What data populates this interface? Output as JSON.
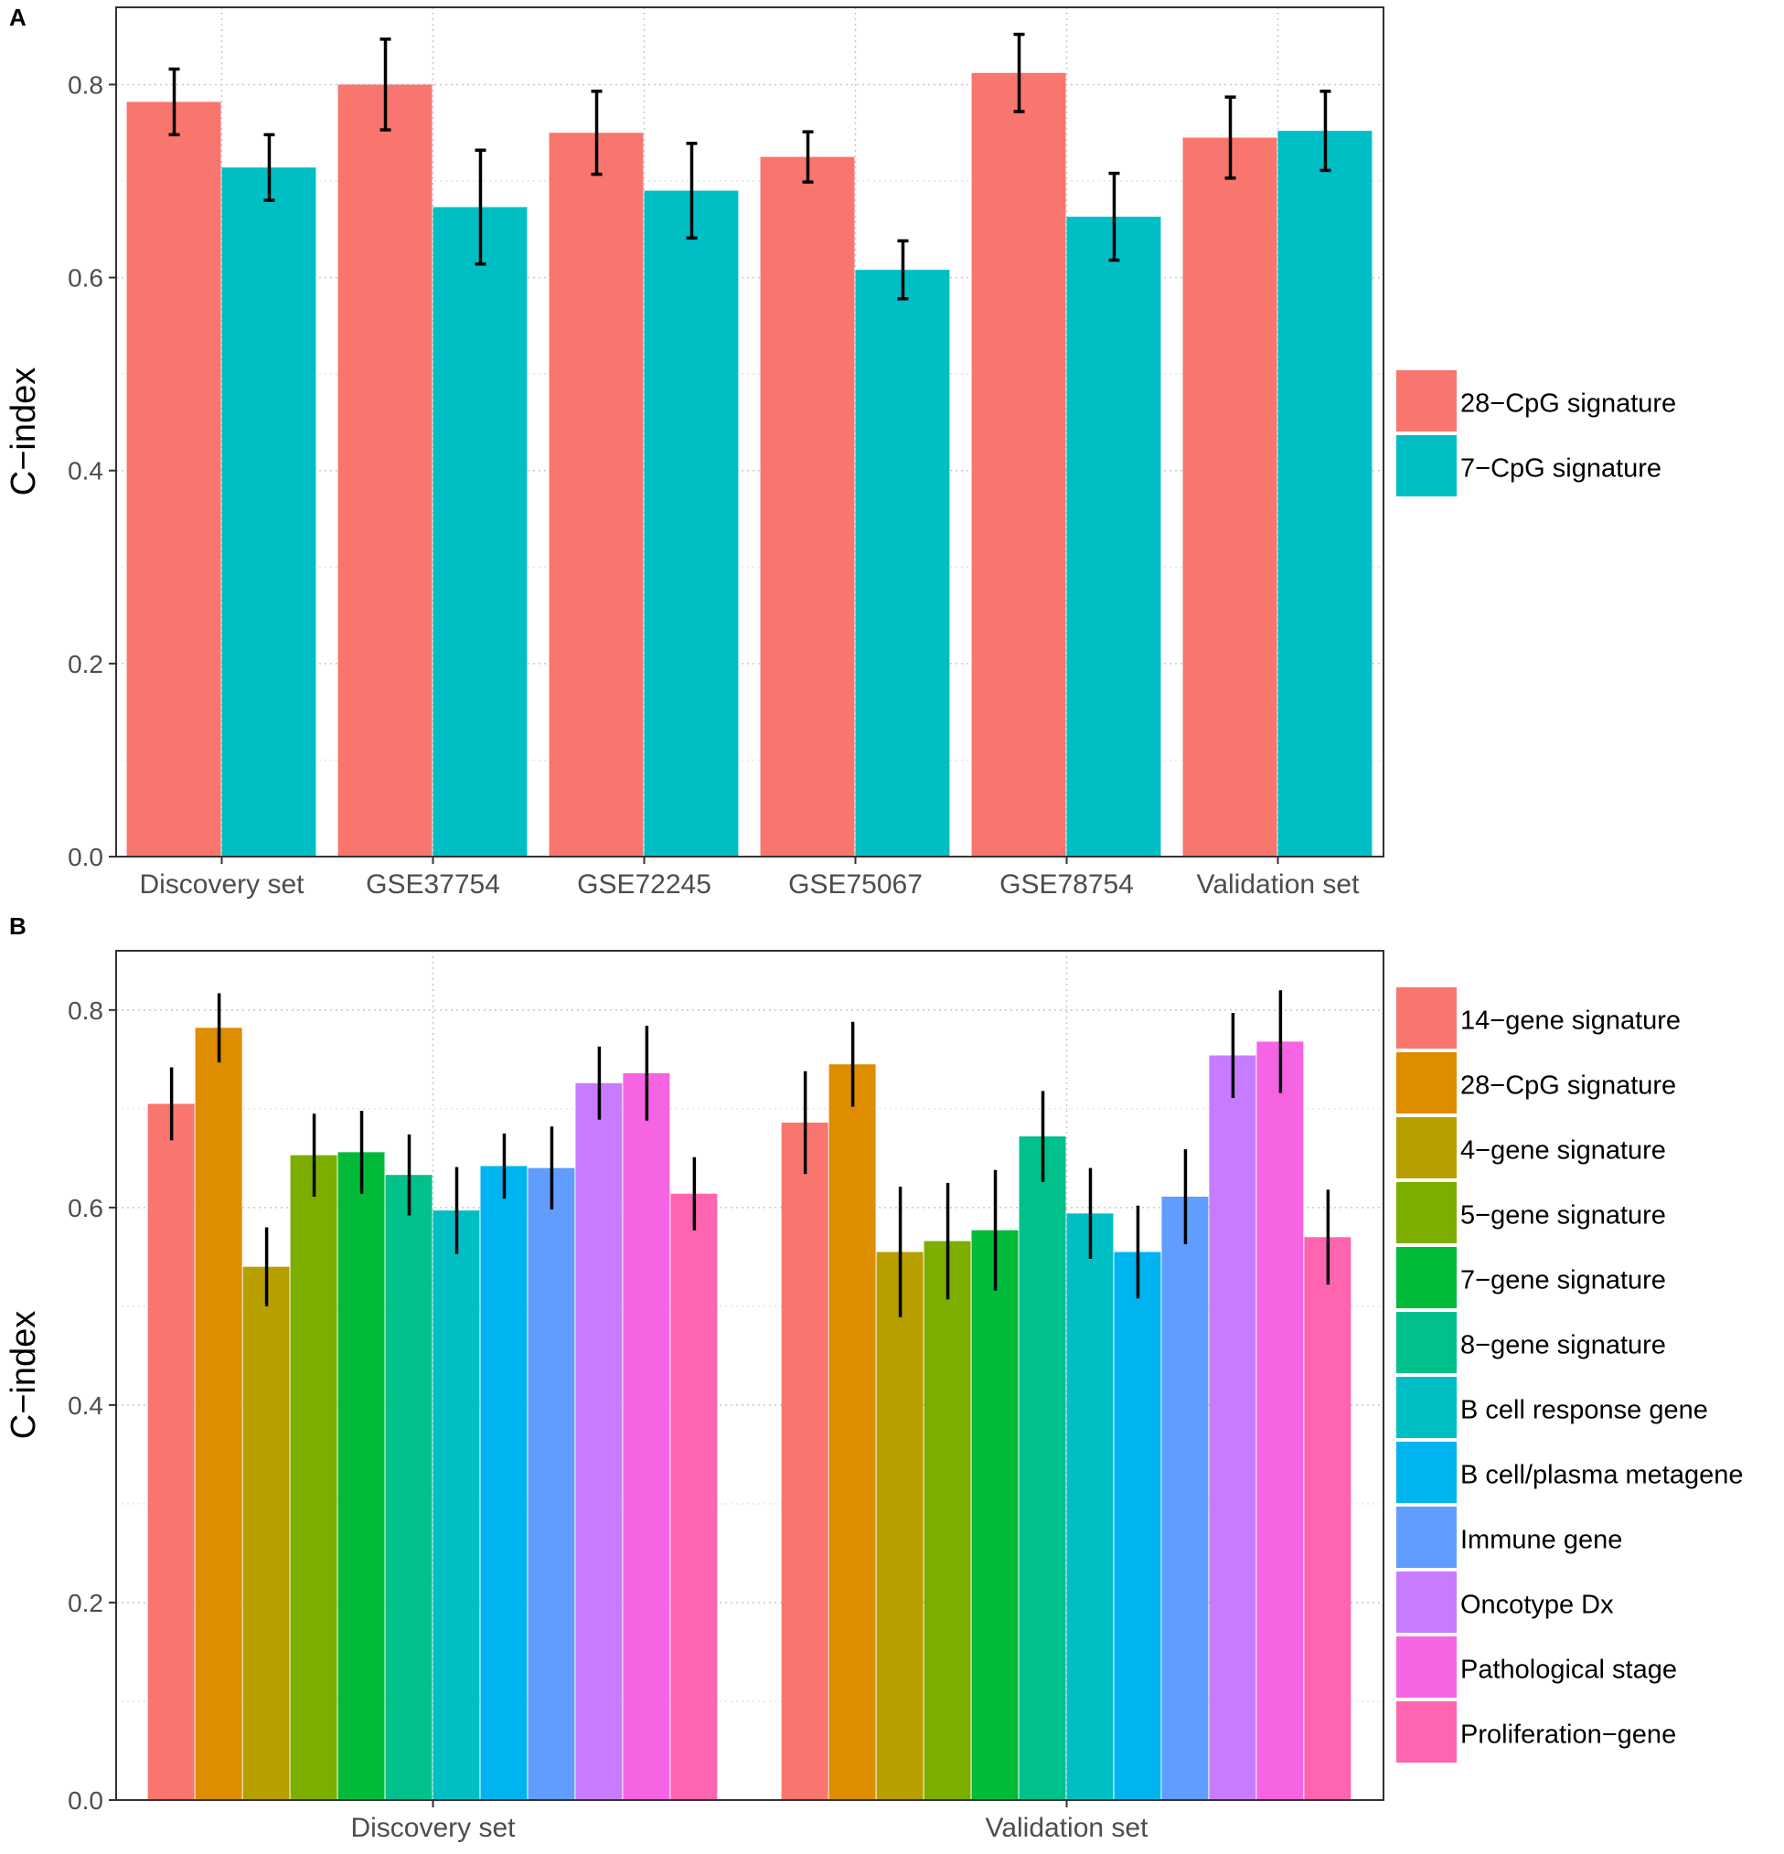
{
  "chart_data": [
    {
      "panel_label": "A",
      "type": "bar",
      "ylabel": "C−index",
      "xlabel": "",
      "ylim": [
        0,
        0.88
      ],
      "yticks": [
        "0.0",
        "0.2",
        "0.4",
        "0.6",
        "0.8"
      ],
      "grid": true,
      "legend_position": "right",
      "categories": [
        "Discovery set",
        "GSE37754",
        "GSE72245",
        "GSE75067",
        "GSE78754",
        "Validation set"
      ],
      "series": [
        {
          "name": "28−CpG signature",
          "color": "#F8766D",
          "values": [
            0.782,
            0.8,
            0.75,
            0.725,
            0.812,
            0.745
          ],
          "lower": [
            0.748,
            0.753,
            0.707,
            0.699,
            0.772,
            0.703
          ],
          "upper": [
            0.816,
            0.847,
            0.793,
            0.751,
            0.852,
            0.787
          ]
        },
        {
          "name": "7−CpG signature",
          "color": "#00BFC4",
          "values": [
            0.714,
            0.673,
            0.69,
            0.608,
            0.663,
            0.752
          ],
          "lower": [
            0.68,
            0.614,
            0.641,
            0.578,
            0.618,
            0.711
          ],
          "upper": [
            0.748,
            0.732,
            0.739,
            0.638,
            0.708,
            0.793
          ]
        }
      ]
    },
    {
      "panel_label": "B",
      "type": "bar",
      "ylabel": "C−index",
      "xlabel": "",
      "ylim": [
        0,
        0.86
      ],
      "yticks": [
        "0.0",
        "0.2",
        "0.4",
        "0.6",
        "0.8"
      ],
      "grid": true,
      "legend_position": "right",
      "categories": [
        "Discovery set",
        "Validation set"
      ],
      "series": [
        {
          "name": "14−gene signature",
          "color": "#F8766D",
          "values": [
            0.705,
            0.686
          ],
          "lower": [
            0.668,
            0.634
          ],
          "upper": [
            0.742,
            0.738
          ]
        },
        {
          "name": "28−CpG signature",
          "color": "#DE8C00",
          "values": [
            0.782,
            0.745
          ],
          "lower": [
            0.747,
            0.702
          ],
          "upper": [
            0.817,
            0.788
          ]
        },
        {
          "name": "4−gene signature",
          "color": "#B79F00",
          "values": [
            0.54,
            0.555
          ],
          "lower": [
            0.5,
            0.489
          ],
          "upper": [
            0.58,
            0.621
          ]
        },
        {
          "name": "5−gene signature",
          "color": "#7CAE00",
          "values": [
            0.653,
            0.566
          ],
          "lower": [
            0.611,
            0.507
          ],
          "upper": [
            0.695,
            0.625
          ]
        },
        {
          "name": "7−gene signature",
          "color": "#00BA38",
          "values": [
            0.656,
            0.577
          ],
          "lower": [
            0.614,
            0.516
          ],
          "upper": [
            0.698,
            0.638
          ]
        },
        {
          "name": "8−gene signature",
          "color": "#00C08B",
          "values": [
            0.633,
            0.672
          ],
          "lower": [
            0.592,
            0.626
          ],
          "upper": [
            0.674,
            0.718
          ]
        },
        {
          "name": "B cell response gene",
          "color": "#00BFC4",
          "values": [
            0.597,
            0.594
          ],
          "lower": [
            0.553,
            0.548
          ],
          "upper": [
            0.641,
            0.64
          ]
        },
        {
          "name": "B cell/plasma metagene",
          "color": "#00B4F0",
          "values": [
            0.642,
            0.555
          ],
          "lower": [
            0.609,
            0.508
          ],
          "upper": [
            0.675,
            0.602
          ]
        },
        {
          "name": "Immune gene",
          "color": "#619CFF",
          "values": [
            0.64,
            0.611
          ],
          "lower": [
            0.598,
            0.563
          ],
          "upper": [
            0.682,
            0.659
          ]
        },
        {
          "name": "Oncotype Dx",
          "color": "#C77CFF",
          "values": [
            0.726,
            0.754
          ],
          "lower": [
            0.689,
            0.711
          ],
          "upper": [
            0.763,
            0.797
          ]
        },
        {
          "name": "Pathological stage",
          "color": "#F564E3",
          "values": [
            0.736,
            0.768
          ],
          "lower": [
            0.688,
            0.716
          ],
          "upper": [
            0.784,
            0.82
          ]
        },
        {
          "name": "Proliferation−gene",
          "color": "#FF64B0",
          "values": [
            0.614,
            0.57
          ],
          "lower": [
            0.577,
            0.522
          ],
          "upper": [
            0.651,
            0.618
          ]
        }
      ]
    }
  ]
}
